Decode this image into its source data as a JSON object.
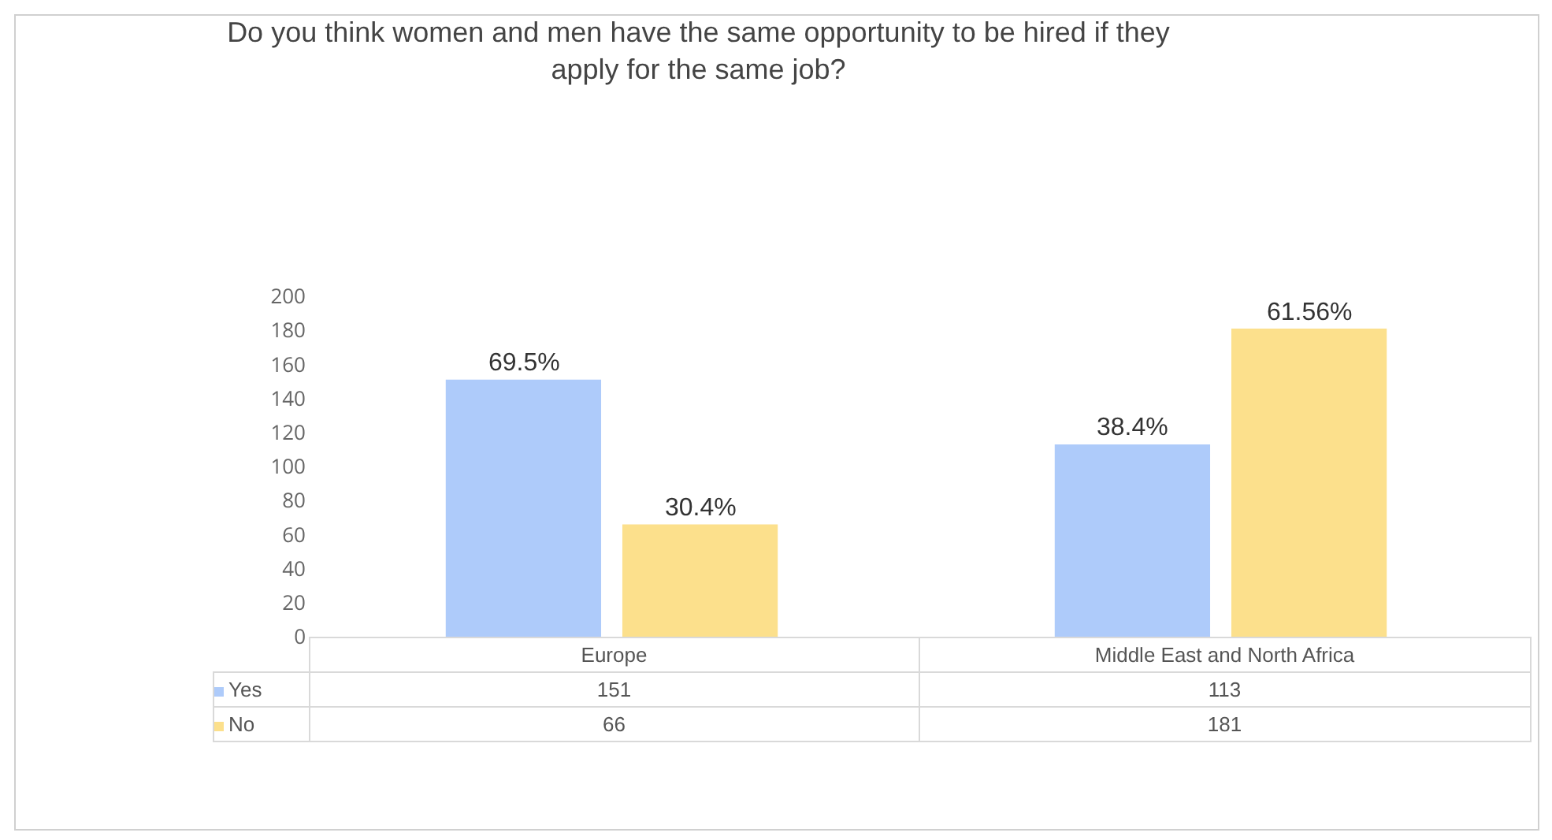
{
  "chart_data": {
    "type": "bar",
    "title": "Do you think women and men have the same opportunity to be hired if they apply for the same job?",
    "categories": [
      "Europe",
      "Middle East and North Africa"
    ],
    "series": [
      {
        "name": "Yes",
        "color": "#aecbfa",
        "values": [
          151,
          113
        ],
        "value_labels": [
          "151",
          "113"
        ]
      },
      {
        "name": "No",
        "color": "#fce08c",
        "values": [
          66,
          181
        ],
        "value_labels": [
          "66",
          "181"
        ]
      }
    ],
    "annotations": [
      "69.5%",
      "30.4%",
      "38.4%",
      "61.56%"
    ],
    "ylim": [
      0,
      200
    ],
    "yticks": [
      0,
      20,
      40,
      60,
      80,
      100,
      120,
      140,
      160,
      180,
      200
    ],
    "grid": false,
    "legend": "bottom left"
  }
}
